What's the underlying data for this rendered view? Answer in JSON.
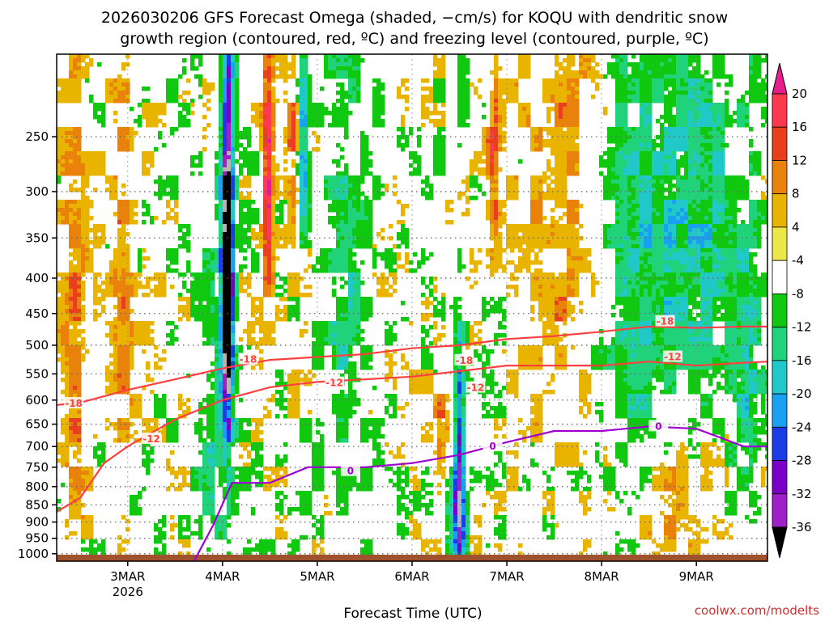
{
  "chart_data": {
    "type": "heatmap",
    "title_line1": "2026030206 GFS Forecast Omega (shaded, −cm/s) for KOQU with dendritic snow",
    "title_line2": "growth region (contoured, red, ºC) and freezing level (contoured, purple, ºC)",
    "xlabel": "Forecast Time (UTC)",
    "credit": "coolwx.com/modelts",
    "x_ticks": [
      "3MAR",
      "4MAR",
      "5MAR",
      "6MAR",
      "7MAR",
      "8MAR",
      "9MAR"
    ],
    "x_sublabel": "2026",
    "x_range_days": [
      2.25,
      9.75
    ],
    "y_ticks": [
      250,
      300,
      350,
      400,
      450,
      500,
      550,
      600,
      650,
      700,
      750,
      800,
      850,
      900,
      950,
      1000
    ],
    "y_range_hpa": [
      190,
      1025
    ],
    "colorbar_ticks": [
      20,
      16,
      12,
      8,
      4,
      -4,
      -8,
      -12,
      -16,
      -20,
      -24,
      -28,
      -32,
      -36
    ],
    "colorbar_colors": [
      "#ff3a50",
      "#e8401c",
      "#e8820a",
      "#e8b400",
      "#ece84a",
      "#ffffff",
      "#10c810",
      "#20d27a",
      "#20c8c8",
      "#1aa0f0",
      "#1a3ce6",
      "#7a00c8",
      "#a020c8",
      "#b4b4b4",
      "#000000"
    ],
    "colorbar_top_color": "#e61e8c",
    "ground_color": "#a0522d",
    "contours": [
      {
        "name": "-18C",
        "label": "-18",
        "color": "#ff4040",
        "points": [
          [
            2.25,
            610
          ],
          [
            2.5,
            605
          ],
          [
            3.0,
            580
          ],
          [
            3.5,
            560
          ],
          [
            4.0,
            540
          ],
          [
            4.5,
            525
          ],
          [
            5.0,
            520
          ],
          [
            5.5,
            515
          ],
          [
            6.0,
            505
          ],
          [
            6.5,
            500
          ],
          [
            7.0,
            490
          ],
          [
            7.5,
            485
          ],
          [
            8.0,
            478
          ],
          [
            8.5,
            470
          ],
          [
            9.0,
            472
          ],
          [
            9.5,
            470
          ],
          [
            9.75,
            470
          ]
        ],
        "labels": [
          [
            2.43,
            607
          ],
          [
            4.27,
            524
          ],
          [
            6.55,
            526
          ],
          [
            8.67,
            462
          ]
        ]
      },
      {
        "name": "-12C",
        "label": "-12",
        "color": "#ff4040",
        "points": [
          [
            2.25,
            870
          ],
          [
            2.5,
            830
          ],
          [
            2.75,
            740
          ],
          [
            3.0,
            700
          ],
          [
            3.5,
            640
          ],
          [
            4.0,
            600
          ],
          [
            4.5,
            575
          ],
          [
            5.0,
            565
          ],
          [
            5.5,
            560
          ],
          [
            6.0,
            555
          ],
          [
            6.5,
            545
          ],
          [
            7.0,
            535
          ],
          [
            7.5,
            535
          ],
          [
            8.0,
            535
          ],
          [
            8.5,
            528
          ],
          [
            9.0,
            535
          ],
          [
            9.5,
            530
          ],
          [
            9.75,
            528
          ]
        ],
        "labels": [
          [
            3.25,
            683
          ],
          [
            5.18,
            567
          ],
          [
            6.67,
            576
          ],
          [
            8.75,
            520
          ]
        ]
      },
      {
        "name": "0C",
        "label": "0",
        "color": "#a000d0",
        "points": [
          [
            3.7,
            1025
          ],
          [
            3.9,
            910
          ],
          [
            4.1,
            790
          ],
          [
            4.5,
            790
          ],
          [
            4.9,
            750
          ],
          [
            5.5,
            750
          ],
          [
            6.0,
            740
          ],
          [
            6.5,
            720
          ],
          [
            7.0,
            690
          ],
          [
            7.5,
            665
          ],
          [
            8.0,
            665
          ],
          [
            8.5,
            655
          ],
          [
            9.0,
            660
          ],
          [
            9.5,
            700
          ],
          [
            9.75,
            700
          ]
        ],
        "labels": [
          [
            5.35,
            760
          ],
          [
            6.85,
            700
          ],
          [
            8.6,
            655
          ]
        ]
      }
    ]
  }
}
